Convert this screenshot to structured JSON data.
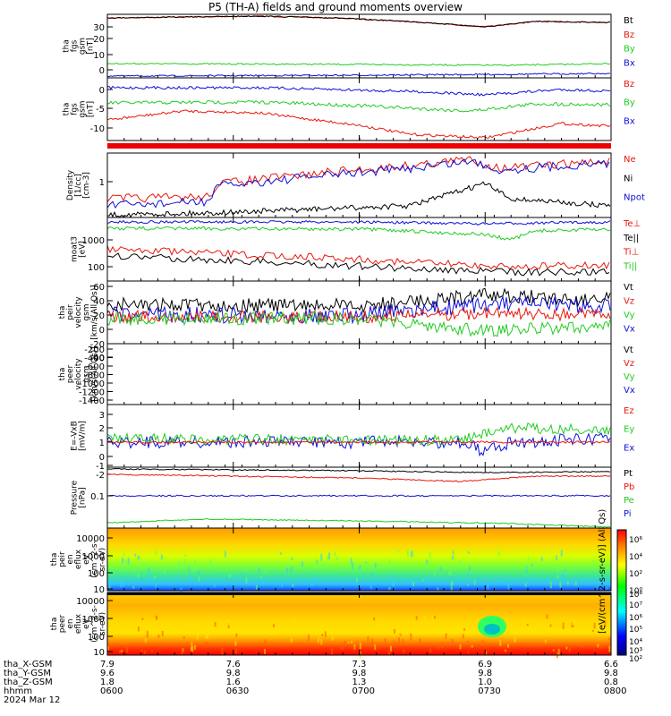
{
  "title": "P5 (TH-A) fields and ground moments overview",
  "colors": {
    "black": "#000000",
    "red": "#e8170c",
    "green": "#22cc22",
    "blue": "#1010d8"
  },
  "panels": [
    {
      "id": "fgs",
      "label": [
        "tha",
        "fgs",
        "gsm",
        "[nT]"
      ],
      "ticks": [
        "30",
        "20",
        "10",
        "0"
      ],
      "legend": [
        {
          "t": "Bt",
          "c": "black"
        },
        {
          "t": "Bz",
          "c": "red"
        },
        {
          "t": "By",
          "c": "green"
        },
        {
          "t": "Bx",
          "c": "blue"
        }
      ]
    },
    {
      "id": "fgs2",
      "label": [
        "tha",
        "fgs",
        "gsm",
        "[nT]"
      ],
      "ticks": [
        "0",
        "-5",
        "-10"
      ],
      "legend": [
        {
          "t": "Bz",
          "c": "red"
        },
        {
          "t": "By",
          "c": "green"
        },
        {
          "t": "Bx",
          "c": "blue"
        }
      ]
    },
    {
      "id": "density",
      "label": [
        "Density",
        "[1/cc]",
        "[cm-3]"
      ],
      "ticks": [
        "1"
      ],
      "legend": [
        {
          "t": "Ne",
          "c": "red"
        },
        {
          "t": "Ni",
          "c": "black"
        },
        {
          "t": "Npot",
          "c": "blue"
        }
      ]
    },
    {
      "id": "temp",
      "label": [
        "moat3",
        "[eV]"
      ],
      "ticks": [
        "1000",
        "100"
      ],
      "legend": [
        {
          "t": "Te⊥",
          "c": "red"
        },
        {
          "t": "Te||",
          "c": "black"
        },
        {
          "t": "Ti⊥",
          "c": "red"
        },
        {
          "t": "Ti||",
          "c": "green"
        }
      ]
    },
    {
      "id": "peir_vel",
      "label": [
        "tha",
        "peir",
        "velocity",
        "gsm",
        "[km/s(All Qs)]"
      ],
      "ticks": [
        "60",
        "40",
        "20",
        "0",
        "-20",
        "-40"
      ],
      "legend": [
        {
          "t": "Vt",
          "c": "black"
        },
        {
          "t": "Vz",
          "c": "red"
        },
        {
          "t": "Vy",
          "c": "green"
        },
        {
          "t": "Vx",
          "c": "blue"
        }
      ]
    },
    {
      "id": "peer_vel",
      "label": [
        "tha",
        "peer",
        "velocity",
        "gsm",
        "[km/s(All Qs)]"
      ],
      "ticks": [
        "-200",
        "-400",
        "-600",
        "-800",
        "-1000",
        "-1200",
        "-1400"
      ],
      "legend": [
        {
          "t": "Vt",
          "c": "black"
        },
        {
          "t": "Vz",
          "c": "red"
        },
        {
          "t": "Vy",
          "c": "green"
        },
        {
          "t": "Vx",
          "c": "blue"
        }
      ]
    },
    {
      "id": "efield",
      "label": [
        "E=-VxB",
        "[mV/m]"
      ],
      "ticks": [
        "3",
        "2",
        "1",
        "0",
        "-1",
        "-2"
      ],
      "legend": [
        {
          "t": "Ez",
          "c": "red"
        },
        {
          "t": "Ey",
          "c": "green"
        },
        {
          "t": "Ex",
          "c": "blue"
        }
      ]
    },
    {
      "id": "pressure",
      "label": [
        "Pressure",
        "[nPa]"
      ],
      "ticks": [
        "0.1"
      ],
      "legend": [
        {
          "t": "Pt",
          "c": "black"
        },
        {
          "t": "Pb",
          "c": "red"
        },
        {
          "t": "Pe",
          "c": "green"
        },
        {
          "t": "Pi",
          "c": "blue"
        }
      ]
    },
    {
      "id": "peir_spec",
      "label": [
        "tha",
        "peir",
        "en",
        "eflux",
        "eV",
        "(cm^2-s-",
        "sr-eV)"
      ],
      "ticks": [
        "10000",
        "1000",
        "100",
        "10"
      ],
      "legend": []
    },
    {
      "id": "peer_spec",
      "label": [
        "tha",
        "peer",
        "en",
        "eflux",
        "eV",
        "(cm^2-s-",
        "sr-eV)"
      ],
      "ticks": [
        "10000",
        "1000",
        "100",
        "10"
      ],
      "legend": []
    }
  ],
  "colorbar": {
    "ticks": [
      "10⁶",
      "10⁴",
      "10²",
      "10⁰",
      "10⁸",
      "10⁷",
      "10⁶",
      "10⁵",
      "10⁴",
      "10³",
      "10²"
    ],
    "label": "[eV/(cm^2-s-sr-eV)] (All Qs)"
  },
  "footer": {
    "rows": [
      {
        "name": "tha_X-GSM",
        "values": [
          "7.9",
          "7.6",
          "7.3",
          "6.9",
          "6.6"
        ]
      },
      {
        "name": "tha_Y-GSM",
        "values": [
          "9.6",
          "9.8",
          "9.8",
          "9.8",
          "9.8"
        ]
      },
      {
        "name": "tha_Z-GSM",
        "values": [
          "1.8",
          "1.6",
          "1.3",
          "1.0",
          "0.8"
        ]
      },
      {
        "name": "hhmm",
        "values": [
          "0600",
          "0630",
          "0700",
          "0730",
          "0800"
        ]
      }
    ],
    "date": "2024 Mar 12"
  },
  "chart_data": {
    "type": "line",
    "title": "P5 (TH-A) fields and ground moments overview",
    "x_ticks": [
      "0600",
      "0630",
      "0700",
      "0730",
      "0800"
    ],
    "x_date": "2024 Mar 12",
    "series": [
      {
        "panel": "fgs",
        "name": "Bt",
        "color": "black",
        "x": [
          "0600",
          "0615",
          "0630",
          "0645",
          "0700",
          "0715",
          "0730",
          "0745",
          "0800"
        ],
        "values": [
          33,
          34,
          34,
          33,
          31,
          29,
          28,
          30,
          31
        ]
      },
      {
        "panel": "fgs",
        "name": "Bz",
        "color": "red",
        "x": [
          "0600",
          "0615",
          "0630",
          "0645",
          "0700",
          "0715",
          "0730",
          "0745",
          "0800"
        ],
        "values": [
          33,
          34,
          34,
          33,
          31,
          29,
          27,
          30,
          31
        ]
      },
      {
        "panel": "fgs",
        "name": "By",
        "color": "green",
        "x": [
          "0600",
          "0615",
          "0630",
          "0645",
          "0700",
          "0715",
          "0730",
          "0745",
          "0800"
        ],
        "values": [
          4,
          4,
          4,
          4,
          4,
          4,
          3,
          4,
          4
        ]
      },
      {
        "panel": "fgs",
        "name": "Bx",
        "color": "blue",
        "x": [
          "0600",
          "0615",
          "0630",
          "0645",
          "0700",
          "0715",
          "0730",
          "0745",
          "0800"
        ],
        "values": [
          -1,
          -1,
          -1,
          -1,
          -1,
          0,
          0,
          0,
          0
        ]
      },
      {
        "panel": "fgs2",
        "name": "Bz",
        "color": "red",
        "x": [
          "0600",
          "0615",
          "0630",
          "0645",
          "0700",
          "0715",
          "0730",
          "0745",
          "0800"
        ],
        "values": [
          -10,
          -7,
          -7,
          -9,
          -11,
          -12,
          -12,
          -10,
          -10
        ]
      },
      {
        "panel": "fgs2",
        "name": "By",
        "color": "green",
        "x": [
          "0600",
          "0615",
          "0630",
          "0645",
          "0700",
          "0715",
          "0730",
          "0745",
          "0800"
        ],
        "values": [
          -3,
          -3,
          -3,
          -3,
          -3,
          -4,
          -5,
          -3,
          -3
        ]
      },
      {
        "panel": "fgs2",
        "name": "Bx",
        "color": "blue",
        "x": [
          "0600",
          "0615",
          "0630",
          "0645",
          "0700",
          "0715",
          "0730",
          "0745",
          "0800"
        ],
        "values": [
          0,
          0,
          0,
          0,
          -1,
          -1,
          -2,
          -1,
          -1
        ]
      },
      {
        "panel": "density",
        "name": "Ne",
        "color": "red",
        "x": [
          "0600",
          "0615",
          "0630",
          "0645",
          "0700",
          "0715",
          "0730",
          "0745",
          "0800"
        ],
        "values": [
          0.3,
          0.3,
          0.8,
          0.9,
          1.5,
          1.5,
          2.0,
          2.5,
          2.5
        ]
      },
      {
        "panel": "density",
        "name": "Ni",
        "color": "black",
        "x": [
          "0600",
          "0615",
          "0630",
          "0645",
          "0700",
          "0715",
          "0730",
          "0745",
          "0800"
        ],
        "values": [
          0.1,
          0.1,
          0.1,
          0.15,
          0.2,
          0.25,
          0.7,
          0.3,
          0.3
        ]
      },
      {
        "panel": "density",
        "name": "Npot",
        "color": "blue",
        "x": [
          "0600",
          "0615",
          "0630",
          "0645",
          "0700",
          "0715",
          "0730",
          "0745",
          "0800"
        ],
        "values": [
          0.2,
          0.2,
          0.7,
          0.8,
          1.3,
          1.4,
          1.9,
          2.3,
          2.3
        ]
      },
      {
        "panel": "temp",
        "name": "Te⊥",
        "color": "red",
        "x": [
          "0600",
          "0615",
          "0630",
          "0645",
          "0700",
          "0715",
          "0730",
          "0745",
          "0800"
        ],
        "values": [
          300,
          250,
          180,
          150,
          160,
          120,
          100,
          90,
          80
        ]
      },
      {
        "panel": "temp",
        "name": "Ti||",
        "color": "green",
        "x": [
          "0600",
          "0615",
          "0630",
          "0645",
          "0700",
          "0715",
          "0730",
          "0745",
          "0800"
        ],
        "values": [
          2500,
          2500,
          2300,
          2200,
          2200,
          2200,
          1400,
          2200,
          2200
        ]
      },
      {
        "panel": "peir_vel",
        "name": "Vt",
        "color": "black",
        "x": [
          "0600",
          "0615",
          "0630",
          "0645",
          "0700",
          "0715",
          "0730",
          "0745",
          "0800"
        ],
        "values": [
          25,
          30,
          35,
          28,
          28,
          25,
          45,
          40,
          40
        ]
      },
      {
        "panel": "peir_vel",
        "name": "Vy",
        "color": "green",
        "x": [
          "0600",
          "0615",
          "0630",
          "0645",
          "0700",
          "0715",
          "0730",
          "0745",
          "0800"
        ],
        "values": [
          5,
          0,
          -10,
          0,
          0,
          0,
          -30,
          -20,
          -25
        ]
      },
      {
        "panel": "efield",
        "name": "Ey",
        "color": "green",
        "x": [
          "0600",
          "0615",
          "0630",
          "0645",
          "0700",
          "0715",
          "0730",
          "0745",
          "0800"
        ],
        "values": [
          0.5,
          0.5,
          0.5,
          0.3,
          0.3,
          0.2,
          0.8,
          1.0,
          1.0
        ]
      },
      {
        "panel": "pressure",
        "name": "Pt",
        "color": "black",
        "x": [
          "0600",
          "0615",
          "0630",
          "0645",
          "0700",
          "0715",
          "0730",
          "0745",
          "0800"
        ],
        "values": [
          0.35,
          0.35,
          0.34,
          0.33,
          0.32,
          0.3,
          0.3,
          0.31,
          0.31
        ]
      },
      {
        "panel": "pressure",
        "name": "Pi",
        "color": "blue",
        "x": [
          "0600",
          "0615",
          "0630",
          "0645",
          "0700",
          "0715",
          "0730",
          "0745",
          "0800"
        ],
        "values": [
          0.1,
          0.1,
          0.1,
          0.1,
          0.1,
          0.1,
          0.1,
          0.1,
          0.1
        ]
      }
    ]
  }
}
